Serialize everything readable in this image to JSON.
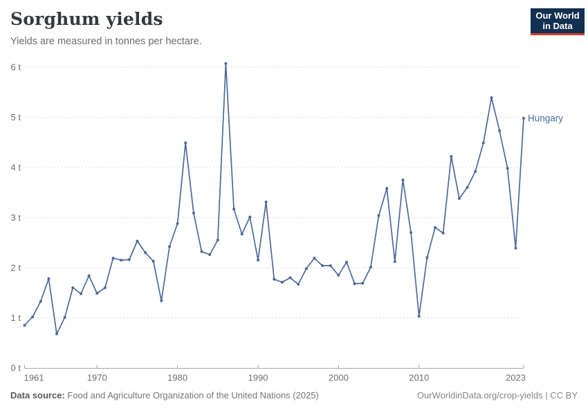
{
  "header": {
    "title": "Sorghum yields",
    "subtitle": "Yields are measured in tonnes per hectare.",
    "logo": {
      "line1": "Our World",
      "line2": "in Data"
    }
  },
  "chart_data": {
    "type": "line",
    "title": "Sorghum yields",
    "subtitle": "Yields are measured in tonnes per hectare.",
    "unit": "tonnes per hectare",
    "ylim": [
      0,
      6
    ],
    "y_ticks": [
      0,
      1,
      2,
      3,
      4,
      5,
      6
    ],
    "y_tick_labels": [
      "0 t",
      "1 t",
      "2 t",
      "3 t",
      "4 t",
      "5 t",
      "6 t"
    ],
    "x_ticks": [
      1961,
      1970,
      1980,
      1990,
      2000,
      2010,
      2023
    ],
    "grid": "dashed-horizontal",
    "legend_position": "end-of-line-label",
    "series": [
      {
        "name": "Hungary",
        "color": "#4b699b",
        "x": [
          1961,
          1962,
          1963,
          1964,
          1965,
          1966,
          1967,
          1968,
          1969,
          1970,
          1971,
          1972,
          1973,
          1974,
          1975,
          1976,
          1977,
          1978,
          1979,
          1980,
          1981,
          1982,
          1983,
          1984,
          1985,
          1986,
          1987,
          1988,
          1989,
          1990,
          1991,
          1992,
          1993,
          1994,
          1995,
          1996,
          1997,
          1998,
          1999,
          2000,
          2001,
          2002,
          2003,
          2004,
          2005,
          2006,
          2007,
          2008,
          2009,
          2010,
          2011,
          2012,
          2013,
          2014,
          2015,
          2016,
          2017,
          2018,
          2019,
          2020,
          2021,
          2022,
          2023
        ],
        "values": [
          0.85,
          1.02,
          1.33,
          1.78,
          0.68,
          1.01,
          1.6,
          1.48,
          1.84,
          1.49,
          1.6,
          2.19,
          2.15,
          2.16,
          2.53,
          2.3,
          2.13,
          1.34,
          2.42,
          2.88,
          4.49,
          3.09,
          2.32,
          2.26,
          2.55,
          6.07,
          3.17,
          2.67,
          3.01,
          2.15,
          3.31,
          1.77,
          1.71,
          1.8,
          1.67,
          1.98,
          2.19,
          2.04,
          2.04,
          1.85,
          2.11,
          1.68,
          1.69,
          2.01,
          3.04,
          3.58,
          2.12,
          3.75,
          2.7,
          1.03,
          2.2,
          2.8,
          2.69,
          4.22,
          3.38,
          3.6,
          3.92,
          4.49,
          5.39,
          4.73,
          3.98,
          2.39,
          4.98
        ]
      }
    ]
  },
  "footer": {
    "source_label": "Data source:",
    "source_text": "Food and Agriculture Organization of the United Nations (2025)",
    "right_text": "OurWorldinData.org/crop-yields | CC BY"
  },
  "colors": {
    "accent": "#4b699b",
    "grid": "#dcdcdc",
    "axis": "#a6a6a6",
    "axis_text": "#6e6e6e",
    "logo_bg": "#12304f",
    "logo_underline": "#d93a2d"
  }
}
